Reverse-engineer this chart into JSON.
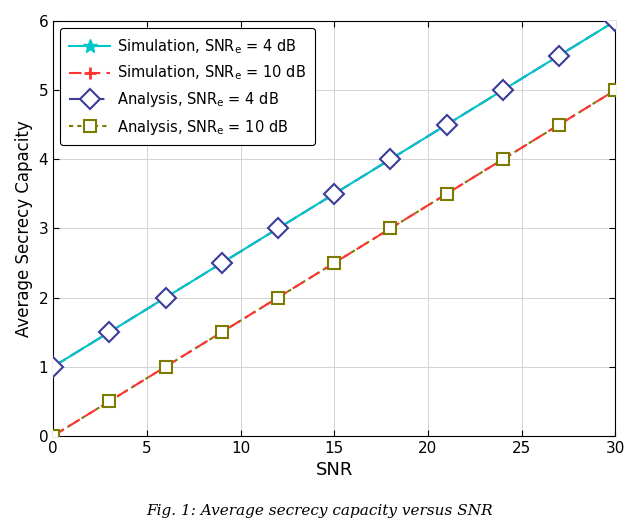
{
  "title": "",
  "xlabel": "SNR",
  "ylabel": "Average Secrecy Capacity",
  "caption": "Fig. 1: Average secrecy capacity versus SNR",
  "xlim": [
    0,
    30
  ],
  "ylim": [
    0,
    6
  ],
  "xticks": [
    0,
    5,
    10,
    15,
    20,
    25,
    30
  ],
  "yticks": [
    0,
    1,
    2,
    3,
    4,
    5,
    6
  ],
  "snr_markers": [
    0,
    3,
    6,
    9,
    12,
    15,
    18,
    21,
    24,
    27,
    30
  ],
  "y4_start": 1.0,
  "y4_end": 6.0,
  "y10_start": 0.0,
  "y10_end": 5.0,
  "color_sim4": "#00C8C8",
  "color_sim10": "#FF3333",
  "color_ana4": "#3C3C9A",
  "color_ana10": "#7B7B00",
  "bg_color": "#FFFFFF",
  "grid_color": "#D3D3D3",
  "linewidth": 1.5,
  "markersize_star": 10,
  "markersize_plus": 9,
  "markersize_diamond": 10,
  "markersize_square": 8
}
